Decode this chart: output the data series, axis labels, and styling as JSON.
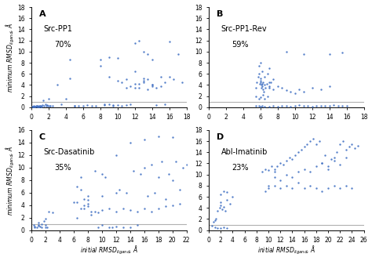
{
  "panels": [
    {
      "label": "A",
      "title": "Src-PP1",
      "percent": "70%",
      "xlim": [
        0,
        18
      ],
      "ylim": [
        0,
        18
      ],
      "xticks": [
        0,
        2,
        4,
        6,
        8,
        10,
        12,
        14,
        16,
        18
      ],
      "yticks": [
        0,
        2,
        4,
        6,
        8,
        10,
        12,
        14,
        16,
        18
      ],
      "xlabel": "",
      "ylabel": "minimum RMSD$_{ligand}$, Å",
      "x": [
        0.1,
        0.15,
        0.2,
        0.25,
        0.3,
        0.35,
        0.4,
        0.5,
        0.55,
        0.6,
        0.65,
        0.7,
        0.75,
        0.8,
        0.85,
        0.9,
        0.95,
        1.0,
        1.05,
        1.1,
        1.2,
        1.3,
        1.4,
        1.5,
        1.6,
        1.7,
        1.8,
        1.9,
        2.0,
        2.1,
        2.2,
        2.5,
        3.0,
        3.5,
        4.0,
        4.5,
        5.0,
        5.5,
        6.0,
        6.5,
        7.0,
        7.5,
        8.0,
        8.5,
        9.0,
        9.5,
        10.0,
        10.5,
        11.0,
        11.5,
        12.0,
        12.0,
        12.5,
        12.5,
        13.0,
        13.0,
        13.5,
        13.5,
        14.0,
        14.0,
        14.5,
        15.0,
        15.5,
        16.0,
        16.5,
        17.0,
        17.5,
        8.0,
        8.5,
        9.0,
        9.5,
        10.0,
        10.5,
        11.0,
        11.5,
        12.0,
        12.5,
        13.0,
        13.5,
        14.0,
        14.5,
        15.0,
        15.5,
        16.0,
        4.5,
        5.0,
        9.0,
        10.0,
        11.0,
        12.0,
        13.0,
        14.0
      ],
      "y": [
        0.1,
        0.15,
        0.05,
        0.2,
        0.1,
        0.05,
        0.15,
        0.1,
        0.3,
        0.2,
        0.1,
        0.05,
        0.2,
        0.1,
        0.15,
        0.3,
        0.1,
        0.3,
        0.2,
        0.1,
        0.15,
        0.4,
        1.2,
        0.3,
        0.5,
        0.2,
        0.4,
        0.3,
        1.5,
        0.2,
        0.3,
        0.3,
        4.0,
        0.5,
        1.5,
        5.2,
        0.3,
        0.2,
        0.3,
        0.4,
        0.3,
        0.2,
        7.5,
        0.5,
        9.0,
        0.4,
        8.8,
        0.3,
        0.4,
        0.5,
        11.5,
        3.5,
        12.0,
        4.2,
        10.0,
        4.5,
        9.5,
        5.0,
        8.5,
        4.0,
        0.4,
        5.5,
        0.5,
        11.8,
        5.0,
        9.5,
        4.5,
        8.5,
        0.4,
        0.5,
        0.3,
        0.4,
        4.5,
        5.0,
        3.8,
        4.2,
        3.5,
        4.8,
        3.2,
        4.0,
        3.5,
        3.8,
        4.5,
        5.5,
        8.5,
        0.3,
        5.5,
        4.8,
        3.5,
        6.5,
        5.2,
        3.8
      ]
    },
    {
      "label": "B",
      "title": "Src-PP1-Rev",
      "percent": "59%",
      "xlim": [
        0,
        18
      ],
      "ylim": [
        0,
        18
      ],
      "xticks": [
        0,
        2,
        4,
        6,
        8,
        10,
        12,
        14,
        16,
        18
      ],
      "yticks": [
        0,
        2,
        4,
        6,
        8,
        10,
        12,
        14,
        16,
        18
      ],
      "xlabel": "",
      "ylabel": "",
      "x": [
        5.5,
        5.6,
        5.7,
        5.8,
        5.9,
        6.0,
        6.0,
        6.0,
        6.1,
        6.1,
        6.2,
        6.2,
        6.3,
        6.3,
        6.4,
        6.5,
        6.5,
        6.6,
        6.7,
        6.8,
        7.0,
        7.0,
        7.2,
        7.5,
        5.5,
        5.8,
        6.0,
        6.2,
        6.5,
        7.0,
        7.5,
        8.0,
        8.5,
        9.0,
        9.5,
        10.0,
        10.5,
        11.0,
        11.5,
        12.0,
        12.5,
        13.0,
        13.5,
        14.0,
        14.5,
        15.0,
        15.5,
        16.0,
        5.5,
        5.8,
        6.0,
        6.3,
        6.5,
        6.8,
        7.0,
        7.5,
        8.0,
        8.5,
        9.0,
        9.5,
        10.0,
        10.5,
        11.0,
        12.0,
        13.0,
        14.0,
        5.8,
        6.0,
        6.2,
        7.0,
        9.0,
        11.0,
        14.0,
        15.5
      ],
      "y": [
        3.5,
        4.5,
        5.5,
        6.0,
        4.2,
        4.5,
        4.8,
        5.2,
        4.0,
        3.5,
        3.8,
        4.2,
        3.2,
        4.5,
        2.8,
        5.5,
        4.0,
        3.5,
        4.2,
        6.0,
        4.5,
        3.8,
        4.5,
        5.0,
        0.2,
        0.3,
        0.1,
        0.2,
        0.15,
        0.1,
        0.2,
        0.15,
        0.2,
        0.3,
        0.15,
        0.2,
        0.4,
        0.3,
        0.2,
        0.15,
        0.3,
        0.2,
        0.25,
        0.3,
        0.4,
        0.3,
        0.2,
        0.25,
        2.0,
        1.5,
        1.8,
        2.2,
        1.5,
        2.0,
        3.5,
        3.2,
        3.8,
        3.5,
        3.0,
        2.8,
        2.5,
        3.2,
        2.8,
        3.5,
        3.2,
        3.8,
        7.5,
        8.0,
        6.5,
        7.0,
        10.0,
        9.5,
        9.5,
        9.8
      ]
    },
    {
      "label": "C",
      "title": "Src-Dasatinib",
      "percent": "35%",
      "xlim": [
        0,
        22
      ],
      "ylim": [
        0,
        16
      ],
      "xticks": [
        0,
        2,
        4,
        6,
        8,
        10,
        12,
        14,
        16,
        18,
        20,
        22
      ],
      "yticks": [
        0,
        2,
        4,
        6,
        8,
        10,
        12,
        14,
        16
      ],
      "xlabel": "initial RMSD$_{ligand}$, Å",
      "ylabel": "minimum RMSD$_{ligand}$, Å",
      "x": [
        0.3,
        0.5,
        0.8,
        1.0,
        1.0,
        1.2,
        1.5,
        1.8,
        2.0,
        2.0,
        2.2,
        2.5,
        3.0,
        6.0,
        6.5,
        7.0,
        7.0,
        7.5,
        7.5,
        8.0,
        8.0,
        8.5,
        9.0,
        9.5,
        10.0,
        10.0,
        10.5,
        11.0,
        11.5,
        12.0,
        12.0,
        12.5,
        13.0,
        13.5,
        14.0,
        14.5,
        15.0,
        15.5,
        16.0,
        16.5,
        17.0,
        17.5,
        18.0,
        18.5,
        19.0,
        19.5,
        20.0,
        20.5,
        21.0,
        21.5,
        22.0,
        0.5,
        1.0,
        1.5,
        2.0,
        6.5,
        7.0,
        7.5,
        8.0,
        8.5,
        9.0,
        9.5,
        10.0,
        11.0,
        12.0,
        13.0,
        14.0,
        15.0,
        16.0,
        17.0,
        18.0,
        19.0,
        20.0,
        21.0,
        6.5,
        8.0,
        10.0,
        12.0,
        14.0,
        16.0,
        18.0,
        20.0
      ],
      "y": [
        0.8,
        0.5,
        0.4,
        0.8,
        1.2,
        0.6,
        0.9,
        1.5,
        0.5,
        1.8,
        0.4,
        3.0,
        2.8,
        4.5,
        7.0,
        6.5,
        8.5,
        3.5,
        5.0,
        5.5,
        4.2,
        3.0,
        9.5,
        0.5,
        9.0,
        0.8,
        8.5,
        0.4,
        0.5,
        12.0,
        0.6,
        6.5,
        0.5,
        6.0,
        0.5,
        9.5,
        0.8,
        9.0,
        10.0,
        5.5,
        10.5,
        6.0,
        8.5,
        11.0,
        5.0,
        9.0,
        8.0,
        11.0,
        6.5,
        10.0,
        10.5,
        0.6,
        0.7,
        0.5,
        0.8,
        2.0,
        3.5,
        4.0,
        3.8,
        2.5,
        3.0,
        2.8,
        3.2,
        3.5,
        3.0,
        3.5,
        3.2,
        3.0,
        3.5,
        3.0,
        3.5,
        3.8,
        4.0,
        4.2,
        4.5,
        4.8,
        5.5,
        6.0,
        14.0,
        14.5,
        15.0,
        14.8
      ]
    },
    {
      "label": "D",
      "title": "Abl-Imatinib",
      "percent": "23%",
      "xlim": [
        0,
        26
      ],
      "ylim": [
        0,
        18
      ],
      "xticks": [
        0,
        2,
        4,
        6,
        8,
        10,
        12,
        14,
        16,
        18,
        20,
        22,
        24,
        26
      ],
      "yticks": [
        0,
        2,
        4,
        6,
        8,
        10,
        12,
        14,
        16,
        18
      ],
      "xlabel": "initial RMSD$_{ligand}$, Å",
      "ylabel": "",
      "x": [
        0.5,
        0.8,
        1.0,
        1.2,
        1.5,
        1.8,
        2.0,
        2.0,
        2.2,
        2.5,
        2.8,
        3.0,
        3.5,
        4.0,
        1.0,
        1.5,
        2.0,
        2.5,
        3.0,
        9.0,
        9.5,
        10.0,
        10.5,
        11.0,
        11.0,
        11.5,
        12.0,
        12.5,
        13.0,
        13.5,
        14.0,
        14.5,
        15.0,
        15.5,
        16.0,
        16.5,
        17.0,
        17.5,
        18.0,
        18.5,
        19.0,
        19.5,
        20.0,
        20.5,
        21.0,
        21.5,
        22.0,
        22.5,
        23.0,
        23.5,
        24.0,
        24.5,
        25.0,
        9.5,
        10.0,
        11.0,
        12.0,
        13.0,
        14.0,
        15.0,
        16.0,
        17.0,
        18.0,
        19.0,
        20.0,
        21.0,
        22.0,
        23.0,
        2.0,
        2.5,
        3.0,
        10.0,
        11.0,
        12.0,
        13.0,
        14.0,
        15.0,
        16.0,
        17.0,
        18.0,
        19.0,
        20.0,
        21.0,
        22.0,
        23.0,
        24.0
      ],
      "y": [
        0.8,
        1.5,
        1.8,
        2.0,
        3.5,
        4.0,
        4.5,
        5.0,
        3.8,
        4.2,
        3.5,
        5.5,
        4.8,
        6.0,
        0.5,
        0.4,
        0.3,
        0.5,
        0.4,
        10.5,
        11.0,
        10.8,
        11.5,
        10.5,
        11.0,
        11.5,
        12.0,
        11.8,
        12.5,
        13.0,
        12.8,
        13.5,
        14.0,
        14.5,
        15.0,
        15.5,
        16.0,
        16.5,
        15.5,
        16.0,
        12.0,
        13.5,
        11.5,
        12.8,
        13.0,
        14.0,
        15.5,
        16.0,
        14.5,
        15.0,
        15.5,
        14.8,
        15.2,
        7.0,
        8.0,
        9.5,
        9.0,
        10.0,
        9.5,
        10.5,
        11.0,
        10.5,
        11.5,
        12.0,
        11.0,
        12.5,
        11.8,
        13.0,
        6.5,
        7.0,
        6.8,
        7.5,
        8.0,
        7.5,
        8.0,
        7.5,
        8.5,
        7.5,
        8.0,
        7.5,
        7.0,
        7.5,
        8.0,
        7.5,
        8.0,
        7.5
      ]
    }
  ],
  "dot_color": "#4472C4",
  "threshold_color": "#b0b0b0",
  "threshold_y": 1.0,
  "dot_size": 3,
  "dot_alpha": 0.9
}
